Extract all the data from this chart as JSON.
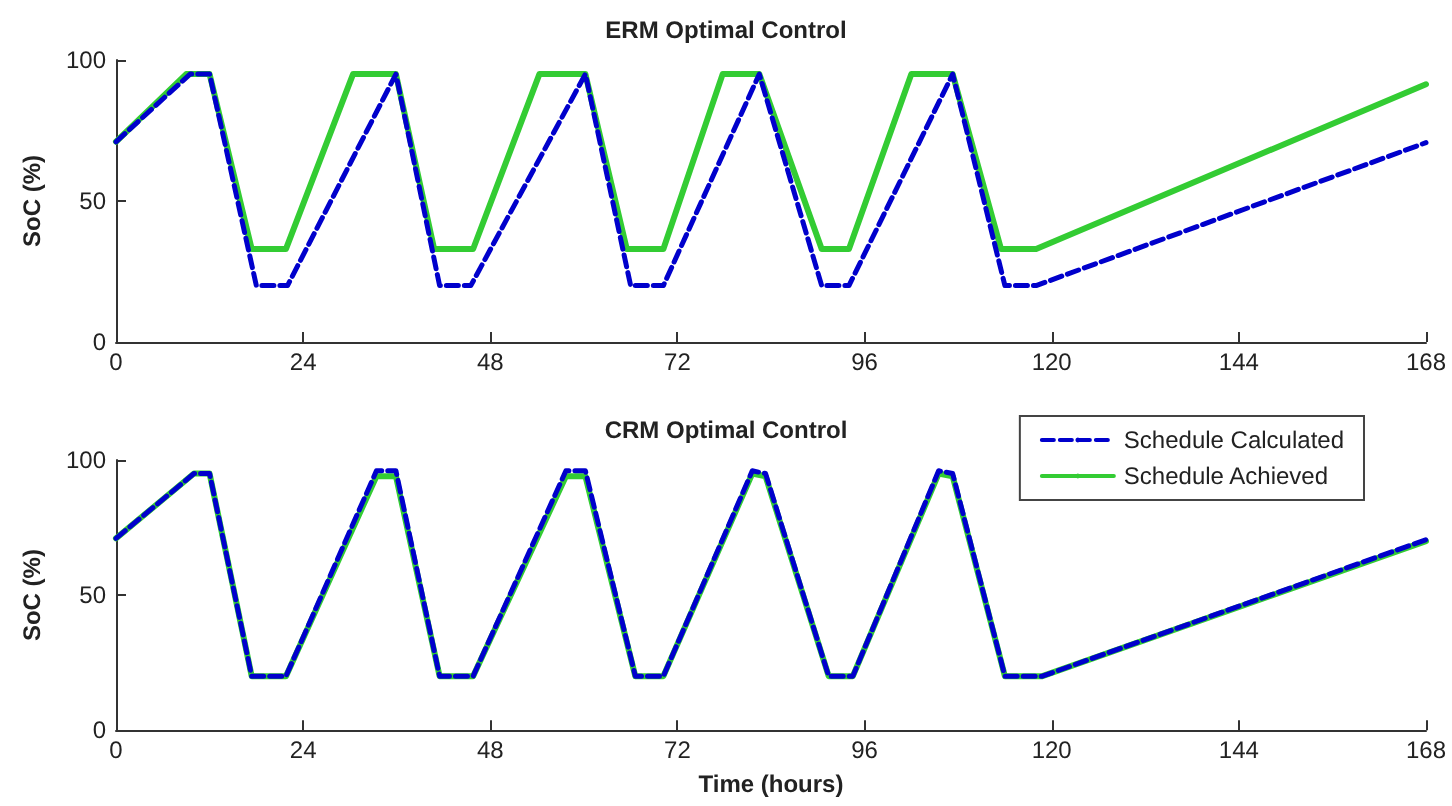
{
  "chart_data": [
    {
      "type": "line",
      "title": "ERM Optimal Control",
      "ylabel": "SoC (%)",
      "xlim": [
        0,
        168
      ],
      "xticks": [
        0,
        24,
        48,
        72,
        96,
        120,
        144,
        168
      ],
      "ylim": [
        0,
        100
      ],
      "yticks": [
        0,
        50,
        100
      ],
      "grid": false,
      "legend": false,
      "marker": "none",
      "series": [
        {
          "color": "#0000cc",
          "line_style": "dashed",
          "x": [
            0,
            9.5,
            12,
            18,
            22,
            35.9,
            41.5,
            45.5,
            60.2,
            66,
            70.2,
            82.5,
            90.5,
            94,
            107.3,
            114,
            118,
            168
          ],
          "values": [
            71,
            95,
            95,
            20,
            20,
            95,
            20,
            20,
            95,
            20,
            20,
            95,
            20,
            20,
            95,
            20,
            20,
            70.7
          ]
        },
        {
          "color": "#33cc33",
          "line_style": "solid",
          "x": [
            0,
            9,
            12,
            17.4,
            21.8,
            30.4,
            35.9,
            40.8,
            45.8,
            54.3,
            60.2,
            65.5,
            70.2,
            77.8,
            82.5,
            90.5,
            94,
            102,
            107.3,
            113.5,
            118,
            168
          ],
          "values": [
            71,
            95,
            95,
            33,
            33,
            95,
            95,
            33,
            33,
            95,
            95,
            33,
            33,
            95,
            95,
            33,
            33,
            95,
            95,
            33,
            33,
            91.4
          ]
        }
      ]
    },
    {
      "type": "line",
      "title": "CRM Optimal Control",
      "xlabel": "Time (hours)",
      "ylabel": "SoC (%)",
      "xlim": [
        0,
        168
      ],
      "xticks": [
        0,
        24,
        48,
        72,
        96,
        120,
        144,
        168
      ],
      "ylim": [
        0,
        100
      ],
      "yticks": [
        0,
        50,
        100
      ],
      "grid": false,
      "legend": "top right",
      "marker": "none",
      "series": [
        {
          "name": "Schedule Calculated",
          "color": "#0000cc",
          "line_style": "dashed",
          "x": [
            0,
            10,
            12,
            17.4,
            21.8,
            33.4,
            35.9,
            41.5,
            45.8,
            57.7,
            60.2,
            66.6,
            70.2,
            81.6,
            83.3,
            91.4,
            94.5,
            105.5,
            107.3,
            114,
            118.8,
            168
          ],
          "values": [
            71,
            95,
            95,
            20,
            20,
            96,
            96,
            20,
            20,
            96,
            96,
            20,
            20,
            96,
            95,
            20,
            20,
            96,
            95,
            20,
            20,
            70.5
          ]
        },
        {
          "name": "Schedule Achieved",
          "color": "#33cc33",
          "line_style": "solid",
          "x": [
            0,
            10,
            12,
            17.4,
            21.8,
            33.4,
            35.9,
            41.5,
            45.8,
            57.7,
            60.2,
            66.6,
            70.2,
            81.6,
            83.3,
            91.4,
            94.5,
            105.5,
            107.3,
            114,
            118.8,
            168
          ],
          "values": [
            71,
            95,
            95,
            20,
            20,
            94,
            94,
            20,
            20,
            94,
            94,
            20,
            20,
            95,
            94,
            20,
            20,
            95,
            94,
            20,
            20,
            70
          ]
        }
      ]
    }
  ]
}
